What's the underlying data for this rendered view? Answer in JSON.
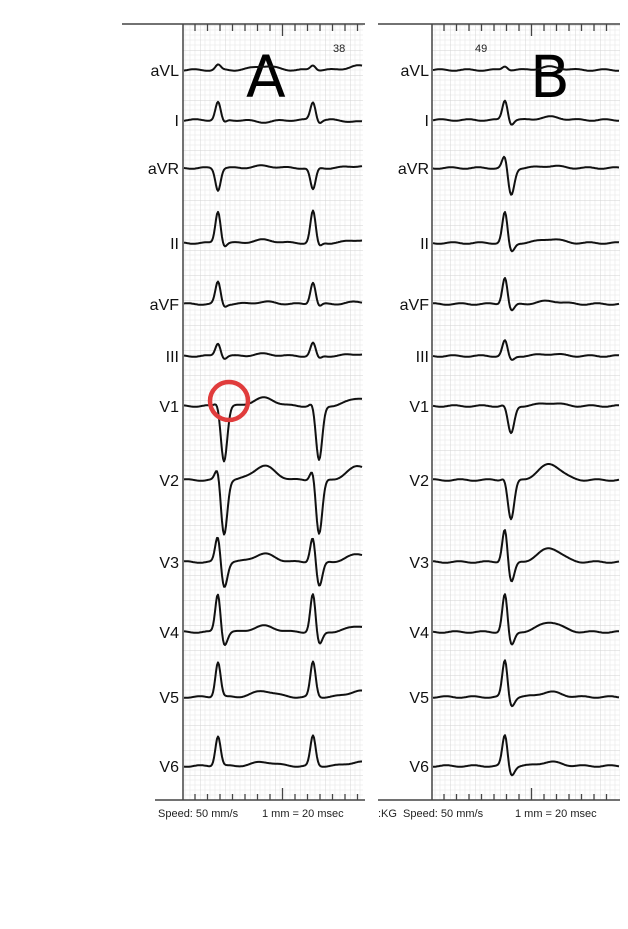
{
  "leads": [
    "aVL",
    "I",
    "aVR",
    "II",
    "aVF",
    "III",
    "V1",
    "V2",
    "V3",
    "V4",
    "V5",
    "V6"
  ],
  "panels": [
    {
      "letter": "A",
      "number": "38",
      "footer_speed": "Speed: 50 mm/s",
      "footer_scale": "1 mm = 20 msec",
      "footer_prefix": ""
    },
    {
      "letter": "B",
      "number": "49",
      "footer_speed": "Speed: 50 mm/s",
      "footer_scale": "1 mm = 20 msec",
      "footer_prefix": ":KG"
    }
  ],
  "annotation": {
    "target_panel": "A",
    "target_lead": "V1",
    "shape": "circle",
    "color": "#e03c3c"
  },
  "colors": {
    "grid_minor": "#ececec",
    "grid_major": "#d2d2d2",
    "trace": "#111111"
  }
}
